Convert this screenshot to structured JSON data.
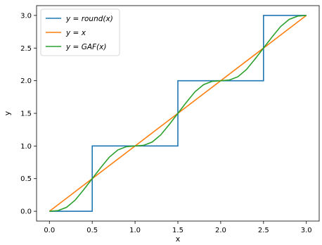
{
  "chart_data": {
    "type": "line",
    "title": "",
    "xlabel": "x",
    "ylabel": "y",
    "xlim": [
      -0.15,
      3.15
    ],
    "ylim": [
      -0.15,
      3.15
    ],
    "xticks": [
      0.0,
      0.5,
      1.0,
      1.5,
      2.0,
      2.5,
      3.0
    ],
    "yticks": [
      0.0,
      0.5,
      1.0,
      1.5,
      2.0,
      2.5,
      3.0
    ],
    "xtick_labels": [
      "0.0",
      "0.5",
      "1.0",
      "1.5",
      "2.0",
      "2.5",
      "3.0"
    ],
    "ytick_labels": [
      "0.0",
      "0.5",
      "1.0",
      "1.5",
      "2.0",
      "2.5",
      "3.0"
    ],
    "grid": false,
    "legend_position": "top-left",
    "series": [
      {
        "name": "y = round(x)",
        "color": "#1f77b4",
        "x": [
          0,
          0.5,
          0.5,
          1.5,
          1.5,
          2.5,
          2.5,
          3.0
        ],
        "y": [
          0,
          0,
          1,
          1,
          2,
          2,
          3,
          3
        ]
      },
      {
        "name": "y = x",
        "color": "#ff7f0e",
        "x": [
          0,
          3
        ],
        "y": [
          0,
          3
        ]
      },
      {
        "name": "y = GAF(x)",
        "color": "#2ca02c",
        "x": [
          0,
          0.1,
          0.2,
          0.3,
          0.4,
          0.5,
          0.6,
          0.7,
          0.8,
          0.9,
          1.0,
          1.1,
          1.2,
          1.3,
          1.4,
          1.5,
          1.6,
          1.7,
          1.8,
          1.9,
          2.0,
          2.1,
          2.2,
          2.3,
          2.4,
          2.5,
          2.6,
          2.7,
          2.8,
          2.9,
          3.0
        ],
        "y": [
          0,
          0.01,
          0.06,
          0.17,
          0.33,
          0.5,
          0.67,
          0.83,
          0.94,
          0.99,
          1.0,
          1.01,
          1.06,
          1.17,
          1.33,
          1.5,
          1.67,
          1.83,
          1.94,
          1.99,
          2.0,
          2.01,
          2.06,
          2.17,
          2.33,
          2.5,
          2.67,
          2.83,
          2.94,
          2.99,
          3.0
        ]
      }
    ]
  },
  "legend": {
    "items": [
      {
        "prefix": "y = ",
        "func": "round(x)"
      },
      {
        "prefix": "y = ",
        "func": "x"
      },
      {
        "prefix": "y = ",
        "func": "GAF(x)"
      }
    ]
  }
}
